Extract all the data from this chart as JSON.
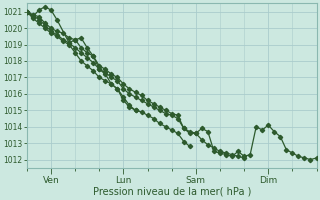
{
  "title": "Pression niveau de la mer( hPa )",
  "ylabel_values": [
    1012,
    1013,
    1014,
    1015,
    1016,
    1017,
    1018,
    1019,
    1020,
    1021
  ],
  "ylim": [
    1011.5,
    1021.5
  ],
  "background_color": "#cce8e0",
  "grid_color": "#aacccc",
  "line_color": "#2d5a2d",
  "marker_color": "#2d5a2d",
  "x_tick_labels": [
    "Ven",
    "Lun",
    "Sam",
    "Dim"
  ],
  "x_tick_positions": [
    24,
    96,
    168,
    240
  ],
  "xlim": [
    0,
    288
  ],
  "n_minor_x": 288,
  "series1_x": [
    0,
    6,
    12,
    18,
    24,
    30,
    36,
    42,
    48,
    54,
    60,
    66,
    72,
    78,
    84,
    90,
    96,
    102,
    108
  ],
  "series1_y": [
    1021.0,
    1020.8,
    1020.7,
    1020.3,
    1020.0,
    1019.8,
    1019.7,
    1019.4,
    1019.3,
    1018.8,
    1018.5,
    1018.3,
    1017.5,
    1017.2,
    1016.6,
    1016.3,
    1015.8,
    1015.3,
    1015.0
  ],
  "series2_x": [
    0,
    6,
    12,
    18,
    24,
    30,
    42,
    48,
    54,
    60,
    66,
    72,
    78,
    84,
    90,
    96,
    102,
    108,
    114,
    120,
    126,
    132,
    138,
    144,
    150,
    156,
    162,
    168,
    174,
    180,
    186,
    192,
    198,
    204,
    210,
    216,
    222,
    228,
    234,
    240,
    246,
    252,
    258,
    264,
    270,
    276,
    282,
    288
  ],
  "series2_y": [
    1021.0,
    1020.7,
    1021.1,
    1021.3,
    1021.1,
    1020.5,
    1019.1,
    1019.3,
    1019.4,
    1018.8,
    1018.3,
    1017.7,
    1017.5,
    1017.2,
    1017.0,
    1016.6,
    1016.3,
    1016.1,
    1015.9,
    1015.6,
    1015.4,
    1015.2,
    1015.0,
    1014.8,
    1014.7,
    1013.9,
    1013.7,
    1013.6,
    1013.9,
    1013.7,
    1012.5,
    1012.4,
    1012.3,
    1012.2,
    1012.5,
    1012.2,
    1012.3,
    1014.0,
    1013.8,
    1014.1,
    1013.7,
    1013.4,
    1012.6,
    1012.4,
    1012.2,
    1012.1,
    1012.0,
    1012.1
  ],
  "series3_x": [
    0,
    6,
    12,
    18,
    24,
    30,
    36,
    42,
    48,
    54,
    60,
    66,
    72,
    78,
    84,
    90,
    96,
    102,
    108,
    114,
    120,
    126,
    132,
    138,
    144,
    150,
    156,
    162
  ],
  "series3_y": [
    1021.0,
    1020.6,
    1020.3,
    1020.0,
    1019.7,
    1019.5,
    1019.2,
    1019.0,
    1018.5,
    1018.0,
    1017.7,
    1017.4,
    1017.0,
    1016.8,
    1016.6,
    1016.3,
    1015.6,
    1015.2,
    1015.0,
    1014.9,
    1014.7,
    1014.5,
    1014.2,
    1014.0,
    1013.8,
    1013.6,
    1013.1,
    1012.8
  ],
  "series4_x": [
    0,
    6,
    12,
    18,
    24,
    30,
    36,
    42,
    48,
    54,
    60,
    66,
    72,
    78,
    84,
    90,
    96,
    102,
    108,
    114,
    120,
    126,
    132,
    138,
    144,
    150,
    156,
    162,
    168,
    174,
    180,
    186,
    192,
    198,
    204,
    210,
    216
  ],
  "series4_y": [
    1021.0,
    1020.8,
    1020.5,
    1020.2,
    1019.8,
    1019.6,
    1019.3,
    1019.1,
    1018.8,
    1018.5,
    1018.2,
    1017.9,
    1017.5,
    1017.3,
    1017.0,
    1016.8,
    1016.3,
    1016.0,
    1015.8,
    1015.6,
    1015.4,
    1015.2,
    1015.0,
    1014.8,
    1014.7,
    1014.5,
    1013.9,
    1013.6,
    1013.6,
    1013.2,
    1012.9,
    1012.7,
    1012.5,
    1012.4,
    1012.3,
    1012.2,
    1012.1
  ]
}
